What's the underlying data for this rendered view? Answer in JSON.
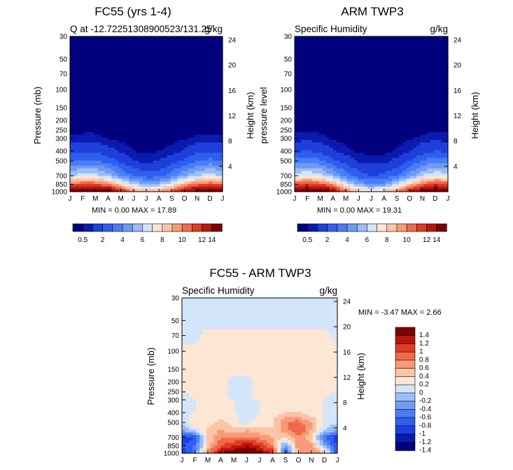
{
  "palette": [
    "#00007f",
    "#0b1bb0",
    "#1f3fdc",
    "#2f5fef",
    "#4a7ef5",
    "#6f9bf7",
    "#9dbdf8",
    "#d3e5fa",
    "#fde7d4",
    "#fbc4a7",
    "#f89a78",
    "#f06a4a",
    "#e03b24",
    "#b81612",
    "#7f0000"
  ],
  "diff_palette": [
    "#00007f",
    "#0b1bb0",
    "#1f3fdc",
    "#2f5fef",
    "#4a7ef5",
    "#6f9bf7",
    "#9dbdf8",
    "#d3e5fa",
    "#fde7d4",
    "#fbc4a7",
    "#f89a78",
    "#f06a4a",
    "#e03b24",
    "#b81612",
    "#7f0000"
  ],
  "months": [
    "J",
    "F",
    "M",
    "A",
    "M",
    "J",
    "J",
    "A",
    "S",
    "O",
    "N",
    "D",
    "J"
  ],
  "pressure_ticks": [
    "30",
    "50",
    "70",
    "100",
    "150",
    "200",
    "250",
    "300",
    "400",
    "500",
    "700",
    "850",
    "1000"
  ],
  "height_ticks": [
    "24",
    "20",
    "16",
    "12",
    "8",
    "4"
  ],
  "panels": [
    {
      "title": "FC55 (yrs 1-4)",
      "subtitle": "Q at -12.72251308900523/131.25",
      "units": "g/kg",
      "ylabel": "Pressure (mb)",
      "ylabel_right": "Height (km)",
      "stats": "MIN =    0.00 MAX =   17.89"
    },
    {
      "title": "ARM TWP3",
      "subtitle": "Specific Humidity",
      "units": "g/kg",
      "ylabel": "pressure level",
      "ylabel_right": "Height (km)",
      "stats": "MIN =    0.00 MAX =   19.31"
    },
    {
      "title": "FC55 - ARM TWP3",
      "subtitle": "Specific Humidity",
      "units": "g/kg",
      "ylabel": "Pressure (mb)",
      "ylabel_right": "Height (km)",
      "stats": "MIN =   -3.47 MAX =    2.66"
    }
  ],
  "colorbar_labels": [
    "0.5",
    "2",
    "4",
    "6",
    "8",
    "10",
    "12",
    "14"
  ],
  "diff_colorbar_labels": [
    "1.4",
    "1.2",
    "1",
    "0.8",
    "0.6",
    "0.4",
    "0.2",
    "0",
    "-0.2",
    "-0.4",
    "-0.6",
    "-0.8",
    "-1",
    "-1.2",
    "-1.4"
  ],
  "chart_data": [
    {
      "type": "heatmap",
      "title": "FC55 (yrs 1-4)",
      "subtitle": "Q at -12.72251308900523/131.25",
      "units": "g/kg",
      "xlabel": "",
      "ylabel": "Pressure (mb)",
      "ylabel_right": "Height (km)",
      "x": [
        "J",
        "F",
        "M",
        "A",
        "M",
        "J",
        "J",
        "A",
        "S",
        "O",
        "N",
        "D",
        "J"
      ],
      "pressure_levels": [
        1000,
        850,
        700,
        500,
        400,
        300
      ],
      "values": [
        [
          15.5,
          16.2,
          16.8,
          15.5,
          12.5,
          10.0,
          9.0,
          9.5,
          11.0,
          13.5,
          15.0,
          16.0,
          15.5
        ],
        [
          10.5,
          11.2,
          11.0,
          10.0,
          8.0,
          6.0,
          5.0,
          5.5,
          7.0,
          9.0,
          10.5,
          11.0,
          10.5
        ],
        [
          6.0,
          6.5,
          6.5,
          5.5,
          4.0,
          3.0,
          2.5,
          2.5,
          3.5,
          5.0,
          6.0,
          6.5,
          6.0
        ],
        [
          3.0,
          3.2,
          3.2,
          2.5,
          1.8,
          1.0,
          0.8,
          1.0,
          1.5,
          2.2,
          3.0,
          3.3,
          3.0
        ],
        [
          1.6,
          1.8,
          1.8,
          1.3,
          0.9,
          0.5,
          0.4,
          0.5,
          0.7,
          1.1,
          1.6,
          1.8,
          1.6
        ],
        [
          0.6,
          0.7,
          0.7,
          0.5,
          0.35,
          0.15,
          0.1,
          0.15,
          0.3,
          0.45,
          0.6,
          0.7,
          0.6
        ]
      ],
      "min": 0.0,
      "max": 17.89
    },
    {
      "type": "heatmap",
      "title": "ARM TWP3",
      "subtitle": "Specific Humidity",
      "units": "g/kg",
      "xlabel": "",
      "ylabel": "pressure level",
      "ylabel_right": "Height (km)",
      "x": [
        "J",
        "F",
        "M",
        "A",
        "M",
        "J",
        "J",
        "A",
        "S",
        "O",
        "N",
        "D",
        "J"
      ],
      "pressure_levels": [
        1000,
        850,
        700,
        500,
        400,
        300
      ],
      "values": [
        [
          16.5,
          17.0,
          16.5,
          14.0,
          10.5,
          8.5,
          8.0,
          8.5,
          10.0,
          12.5,
          15.0,
          17.0,
          16.5
        ],
        [
          11.0,
          11.5,
          11.0,
          9.5,
          7.0,
          5.0,
          4.0,
          4.5,
          6.0,
          8.5,
          10.5,
          11.5,
          11.0
        ],
        [
          6.5,
          7.0,
          6.5,
          5.0,
          3.5,
          2.5,
          2.0,
          2.2,
          3.0,
          4.5,
          6.0,
          7.0,
          6.5
        ],
        [
          3.2,
          3.5,
          3.2,
          2.2,
          1.5,
          0.9,
          0.7,
          0.8,
          1.2,
          2.0,
          3.0,
          3.5,
          3.2
        ],
        [
          1.8,
          2.0,
          1.7,
          1.1,
          0.7,
          0.4,
          0.3,
          0.35,
          0.6,
          1.0,
          1.6,
          2.0,
          1.8
        ],
        [
          0.7,
          0.8,
          0.7,
          0.4,
          0.25,
          0.12,
          0.1,
          0.12,
          0.2,
          0.4,
          0.65,
          0.8,
          0.7
        ]
      ],
      "min": 0.0,
      "max": 19.31
    },
    {
      "type": "heatmap",
      "title": "FC55 - ARM TWP3",
      "subtitle": "Specific Humidity",
      "units": "g/kg",
      "xlabel": "",
      "ylabel": "Pressure (mb)",
      "ylabel_right": "Height (km)",
      "x": [
        "J",
        "F",
        "M",
        "A",
        "M",
        "J",
        "J",
        "A",
        "S",
        "O",
        "N",
        "D",
        "J"
      ],
      "pressure_levels": [
        1000,
        850,
        700,
        600,
        500,
        400,
        300,
        200,
        150,
        100,
        70,
        50,
        30
      ],
      "values": [
        [
          -1.2,
          -0.6,
          0.6,
          1.2,
          1.4,
          1.4,
          1.3,
          1.0,
          -1.0,
          0.4,
          0.6,
          0.4,
          -1.2
        ],
        [
          -1.0,
          -0.8,
          0.3,
          0.8,
          1.0,
          1.2,
          1.0,
          0.6,
          -0.6,
          0.6,
          0.5,
          -0.4,
          -1.0
        ],
        [
          -1.2,
          -1.0,
          0.2,
          0.6,
          0.6,
          0.6,
          0.5,
          0.4,
          0.2,
          0.5,
          0.2,
          -0.8,
          -1.2
        ],
        [
          -0.4,
          -0.2,
          0.3,
          0.4,
          0.3,
          0.4,
          0.3,
          0.2,
          0.5,
          0.8,
          0.4,
          -0.2,
          -0.4
        ],
        [
          -0.2,
          0.2,
          0.1,
          0.3,
          0.1,
          -0.1,
          0.1,
          0.2,
          0.6,
          0.7,
          0.4,
          0.0,
          -0.2
        ],
        [
          -0.1,
          0.0,
          0.0,
          0.1,
          0.0,
          -0.1,
          0.0,
          0.1,
          0.2,
          0.2,
          0.1,
          0.0,
          -0.1
        ],
        [
          -0.05,
          0.0,
          0.0,
          0.0,
          0.0,
          0.0,
          0.0,
          0.0,
          0.0,
          0.0,
          0.0,
          0.0,
          -0.05
        ],
        [
          0.05,
          0.05,
          0.05,
          0.05,
          -0.05,
          -0.05,
          0.05,
          0.05,
          0.05,
          0.05,
          0.05,
          0.05,
          0.05
        ],
        [
          0.05,
          0.05,
          0.05,
          0.05,
          0.05,
          0.05,
          0.05,
          0.05,
          0.05,
          0.05,
          0.05,
          0.05,
          0.05
        ],
        [
          0.05,
          0.05,
          0.05,
          0.05,
          0.05,
          0.05,
          0.05,
          0.05,
          0.05,
          0.05,
          0.05,
          0.05,
          0.05
        ],
        [
          -0.05,
          -0.05,
          0.05,
          0.05,
          0.05,
          0.05,
          0.05,
          0.05,
          0.05,
          0.05,
          0.05,
          0.05,
          -0.05
        ],
        [
          -0.05,
          -0.05,
          -0.05,
          -0.05,
          -0.05,
          -0.05,
          -0.05,
          -0.05,
          -0.05,
          -0.05,
          -0.05,
          -0.05,
          -0.05
        ],
        [
          -0.05,
          -0.05,
          -0.05,
          -0.05,
          -0.05,
          -0.05,
          -0.05,
          -0.05,
          -0.05,
          -0.05,
          -0.05,
          -0.05,
          -0.05
        ]
      ],
      "min": -3.47,
      "max": 2.66
    }
  ]
}
